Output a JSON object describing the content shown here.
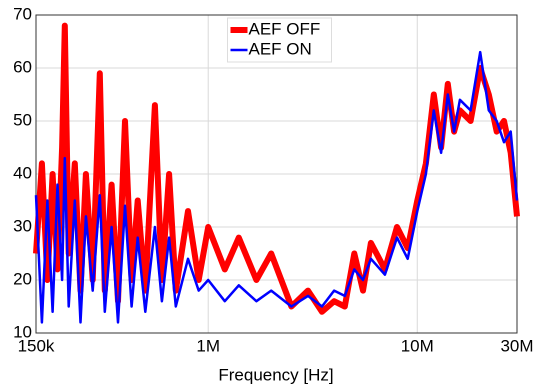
{
  "chart_data": {
    "type": "line",
    "xlabel": "Frequency [Hz]",
    "xscale": "log",
    "xlim": [
      150000,
      30000000
    ],
    "xticks": [
      {
        "value": 150000,
        "label": "150k"
      },
      {
        "value": 1000000,
        "label": "1M"
      },
      {
        "value": 10000000,
        "label": "10M"
      },
      {
        "value": 30000000,
        "label": "30M"
      }
    ],
    "ylim": [
      10,
      70
    ],
    "yticks": [
      10,
      20,
      30,
      40,
      50,
      60,
      70
    ],
    "grid": true,
    "legend": "top",
    "x": [
      150000,
      160000,
      170000,
      180000,
      190000,
      200000,
      206000,
      215000,
      230000,
      245000,
      260000,
      280000,
      303000,
      320000,
      345000,
      370000,
      400000,
      430000,
      460000,
      500000,
      556000,
      600000,
      650000,
      700000,
      800000,
      900000,
      1000000,
      1200000,
      1400000,
      1700000,
      2000000,
      2500000,
      3000000,
      3500000,
      4000000,
      4500000,
      5000000,
      5500000,
      6000000,
      7000000,
      8000000,
      9000000,
      10000000,
      11000000,
      12000000,
      13000000,
      14000000,
      15000000,
      16000000,
      18000000,
      20000000,
      22000000,
      24000000,
      26000000,
      28000000,
      30000000
    ],
    "series": [
      {
        "name": "AEF OFF",
        "color": "#ff0000",
        "width": 6,
        "values": [
          25,
          42,
          20,
          40,
          22,
          45,
          68,
          25,
          42,
          18,
          40,
          20,
          59,
          18,
          38,
          16,
          50,
          20,
          35,
          18,
          53,
          20,
          40,
          18,
          33,
          20,
          30,
          22,
          28,
          20,
          25,
          15,
          18,
          14,
          16,
          15,
          25,
          18,
          27,
          22,
          30,
          26,
          35,
          42,
          55,
          45,
          57,
          48,
          52,
          50,
          60,
          55,
          48,
          50,
          44,
          32
        ]
      },
      {
        "name": "AEF ON",
        "color": "#0000ff",
        "width": 2.5,
        "values": [
          36,
          12,
          35,
          14,
          38,
          20,
          43,
          15,
          35,
          12,
          32,
          18,
          36,
          14,
          30,
          12,
          34,
          15,
          28,
          14,
          30,
          16,
          28,
          15,
          24,
          18,
          20,
          16,
          19,
          16,
          18,
          15,
          17,
          15,
          18,
          17,
          22,
          20,
          24,
          21,
          28,
          24,
          33,
          40,
          52,
          44,
          55,
          48,
          54,
          52,
          63,
          52,
          50,
          46,
          48,
          35
        ]
      }
    ]
  }
}
